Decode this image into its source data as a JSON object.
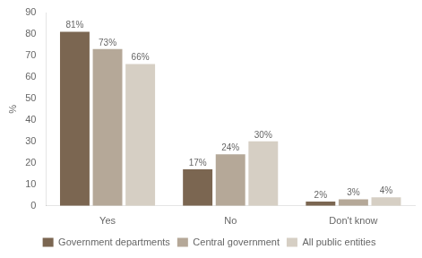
{
  "chart_data": {
    "type": "bar",
    "categories": [
      "Yes",
      "No",
      "Don't know"
    ],
    "series": [
      {
        "name": "Government departments",
        "color": "#7B6651",
        "values": [
          81,
          17,
          2
        ],
        "value_labels": [
          "81%",
          "17%",
          "2%"
        ]
      },
      {
        "name": "Central government",
        "color": "#B5A898",
        "values": [
          73,
          24,
          3
        ],
        "value_labels": [
          "73%",
          "24%",
          "3%"
        ]
      },
      {
        "name": "All public entities",
        "color": "#D6CFC4",
        "values": [
          66,
          30,
          4
        ],
        "value_labels": [
          "66%",
          "30%",
          "4%"
        ]
      }
    ],
    "ylabel": "%",
    "ylim": [
      0,
      90
    ],
    "yticks": [
      0,
      10,
      20,
      30,
      40,
      50,
      60,
      70,
      80,
      90
    ],
    "grid": false,
    "legend": "bottom",
    "data_labels": true
  }
}
